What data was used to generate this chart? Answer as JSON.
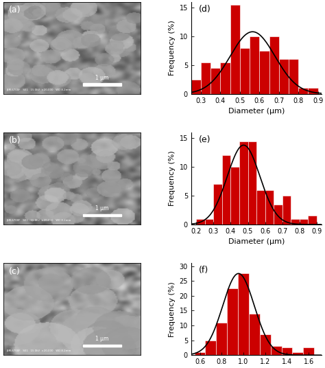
{
  "panel_d": {
    "label": "(d)",
    "bar_edges": [
      0.25,
      0.3,
      0.35,
      0.4,
      0.45,
      0.5,
      0.55,
      0.6,
      0.65,
      0.7,
      0.75,
      0.8,
      0.85,
      0.9
    ],
    "bar_heights": [
      2.5,
      5.5,
      4.5,
      5.5,
      15.5,
      8.0,
      10.0,
      7.5,
      10.0,
      6.0,
      6.0,
      1.0,
      1.0
    ],
    "xlim": [
      0.25,
      0.92
    ],
    "ylim": [
      0,
      16
    ],
    "xticks": [
      0.3,
      0.4,
      0.5,
      0.6,
      0.7,
      0.8,
      0.9
    ],
    "yticks": [
      0,
      5,
      10,
      15
    ],
    "xlabel": "Diameter (μm)",
    "ylabel": "Frequency (%)",
    "gauss_mean": 0.565,
    "gauss_std": 0.115,
    "gauss_amp": 10.8
  },
  "panel_e": {
    "label": "(e)",
    "bar_edges": [
      0.2,
      0.25,
      0.3,
      0.35,
      0.4,
      0.45,
      0.5,
      0.55,
      0.6,
      0.65,
      0.7,
      0.75,
      0.8,
      0.85,
      0.9
    ],
    "bar_heights": [
      1.0,
      1.0,
      7.0,
      12.0,
      10.0,
      14.5,
      14.5,
      6.0,
      6.0,
      3.5,
      5.0,
      1.0,
      1.0,
      1.5
    ],
    "xlim": [
      0.17,
      0.93
    ],
    "ylim": [
      0,
      16
    ],
    "xticks": [
      0.2,
      0.3,
      0.4,
      0.5,
      0.6,
      0.7,
      0.8,
      0.9
    ],
    "yticks": [
      0,
      5,
      10,
      15
    ],
    "xlabel": "Diameter (μm)",
    "ylabel": "Frequency (%)",
    "gauss_mean": 0.475,
    "gauss_std": 0.095,
    "gauss_amp": 13.8
  },
  "panel_f": {
    "label": "(f)",
    "bar_edges": [
      0.55,
      0.65,
      0.75,
      0.85,
      0.95,
      1.05,
      1.15,
      1.25,
      1.35,
      1.45,
      1.55,
      1.65
    ],
    "bar_heights": [
      1.0,
      5.0,
      11.0,
      22.5,
      27.5,
      14.0,
      7.0,
      3.0,
      2.5,
      1.0,
      2.5
    ],
    "xlim": [
      0.52,
      1.72
    ],
    "ylim": [
      0,
      31
    ],
    "xticks": [
      0.6,
      0.8,
      1.0,
      1.2,
      1.4,
      1.6
    ],
    "yticks": [
      0,
      5,
      10,
      15,
      20,
      25,
      30
    ],
    "xlabel": "Diameter (μm)",
    "ylabel": "Frequency (%)",
    "gauss_mean": 0.955,
    "gauss_std": 0.145,
    "gauss_amp": 27.5
  },
  "bar_color": "#cc0000",
  "bar_edgecolor": "#cc0000",
  "curve_color": "#000000",
  "background_color": "#ffffff",
  "label_fontsize": 9,
  "tick_fontsize": 7,
  "axis_label_fontsize": 8,
  "sem_labels": [
    "(a)",
    "(b)",
    "(c)"
  ],
  "sem_bg_mean": 0.55,
  "sem_bg_std": 0.12
}
